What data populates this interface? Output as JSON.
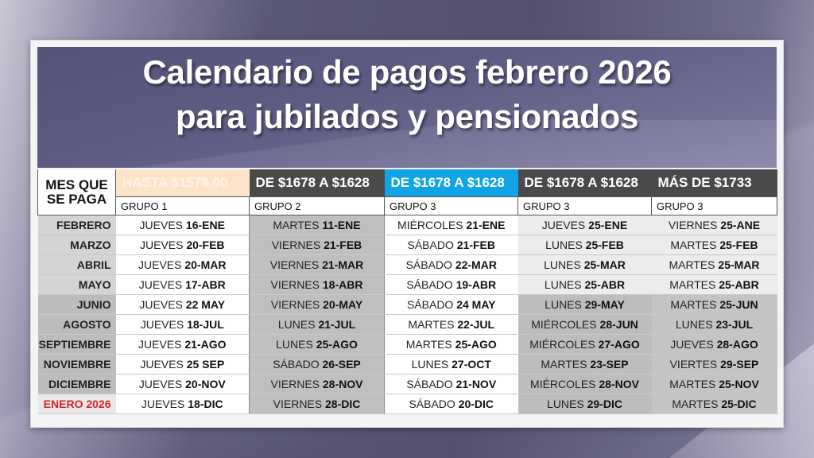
{
  "title": {
    "line1": "Calendario de pagos febrero 2026",
    "line2": "para jubilados y pensionados"
  },
  "table": {
    "month_header": {
      "line1": "MES QUE",
      "line2": "SE PAGA"
    },
    "columns": [
      {
        "range": "HASTA $1578.00",
        "group": "GRUPO 1",
        "color": "#fde3c7"
      },
      {
        "range": "DE $1678 A $1628",
        "group": "GRUPO 2",
        "color": "#4a4a4a"
      },
      {
        "range": "DE $1678 A $1628",
        "group": "GRUPO 3",
        "color": "#10a4e6"
      },
      {
        "range": "DE $1678 A $1628",
        "group": "GRUPO 3",
        "color": "#4a4a4a"
      },
      {
        "range": "MÁS DE $1733",
        "group": "GRUPO 3",
        "color": "#4a4a4a"
      }
    ],
    "rows": [
      {
        "month": "FEBRERO",
        "cells": [
          {
            "day": "JUEVES",
            "date": "16-ENE"
          },
          {
            "day": "MARTES",
            "date": "11-ENE"
          },
          {
            "day": "MIÉRCOLES",
            "date": "21-ENE"
          },
          {
            "day": "JUEVES",
            "date": "25-ENE"
          },
          {
            "day": "VIERNES",
            "date": "25-ANE"
          }
        ]
      },
      {
        "month": "MARZO",
        "cells": [
          {
            "day": "JUEVES",
            "date": "20-FEB"
          },
          {
            "day": "VIERNES",
            "date": "21-FEB"
          },
          {
            "day": "SÁBADO",
            "date": "21-FEB"
          },
          {
            "day": "LUNES",
            "date": "25-FEB"
          },
          {
            "day": "MARTES",
            "date": "25-FEB"
          }
        ]
      },
      {
        "month": "ABRIL",
        "cells": [
          {
            "day": "JUEVES",
            "date": "20-MAR"
          },
          {
            "day": "VIERNES",
            "date": "21-MAR"
          },
          {
            "day": "SÁBADO",
            "date": "22-MAR"
          },
          {
            "day": "LUNES",
            "date": "25-MAR"
          },
          {
            "day": "MARTES",
            "date": "25-MAR"
          }
        ]
      },
      {
        "month": "MAYO",
        "cells": [
          {
            "day": "JUEVES",
            "date": "17-ABR"
          },
          {
            "day": "VIERNES",
            "date": "18-ABR"
          },
          {
            "day": "SÁBADO",
            "date": "19-ABR"
          },
          {
            "day": "LUNES",
            "date": "25-ABR"
          },
          {
            "day": "MARTES",
            "date": "25-ABR"
          }
        ]
      },
      {
        "month": "JUNIO",
        "cells": [
          {
            "day": "JUEVES",
            "date": "22 MAY"
          },
          {
            "day": "VIERNES",
            "date": "20-MAY"
          },
          {
            "day": "SÁBADO",
            "date": "24 MAY"
          },
          {
            "day": "LUNES",
            "date": "29-MAY"
          },
          {
            "day": "MARTES",
            "date": "25-JUN"
          }
        ]
      },
      {
        "month": "AGOSTO",
        "cells": [
          {
            "day": "JUEVES",
            "date": "18-JUL"
          },
          {
            "day": "LUNES",
            "date": "21-JUL"
          },
          {
            "day": "MARTES",
            "date": "22-JUL"
          },
          {
            "day": "MIÉRCOLES",
            "date": "28-JUN"
          },
          {
            "day": "LUNES",
            "date": "23-JUL"
          }
        ]
      },
      {
        "month": "SEPTIEMBRE",
        "cells": [
          {
            "day": "JUEVES",
            "date": "21-AGO"
          },
          {
            "day": "LUNES",
            "date": "25-AGO"
          },
          {
            "day": "MARTES",
            "date": "25-AGO"
          },
          {
            "day": "MIÉRCOLES",
            "date": "27-AGO"
          },
          {
            "day": "JUEVES",
            "date": "28-AGO"
          }
        ]
      },
      {
        "month": "NOVIEMBRE",
        "cells": [
          {
            "day": "JUEVES",
            "date": "25 SEP"
          },
          {
            "day": "SÁBADO",
            "date": "26-SEP"
          },
          {
            "day": "LUNES",
            "date": "27-OCT"
          },
          {
            "day": "MARTES",
            "date": "23-SEP"
          },
          {
            "day": "VIERTES",
            "date": "29-SEP"
          }
        ]
      },
      {
        "month": "DICIEMBRE",
        "cells": [
          {
            "day": "JUEVES",
            "date": "20-NOV"
          },
          {
            "day": "VIERNES",
            "date": "28-NOV"
          },
          {
            "day": "SÁBADO",
            "date": "21-NOV"
          },
          {
            "day": "MIÉRCOLES",
            "date": "28-NOV"
          },
          {
            "day": "MARTES",
            "date": "25-NOV"
          }
        ]
      },
      {
        "month": "ENERO 2026",
        "month_color": "#d32626",
        "cells": [
          {
            "day": "JUEVES",
            "date": "18-DIC"
          },
          {
            "day": "VIERNES",
            "date": "28-DIC"
          },
          {
            "day": "SÁBADO",
            "date": "20-DIC"
          },
          {
            "day": "LUNES",
            "date": "29-DIC"
          },
          {
            "day": "MARTES",
            "date": "25-DIC"
          }
        ]
      }
    ]
  }
}
